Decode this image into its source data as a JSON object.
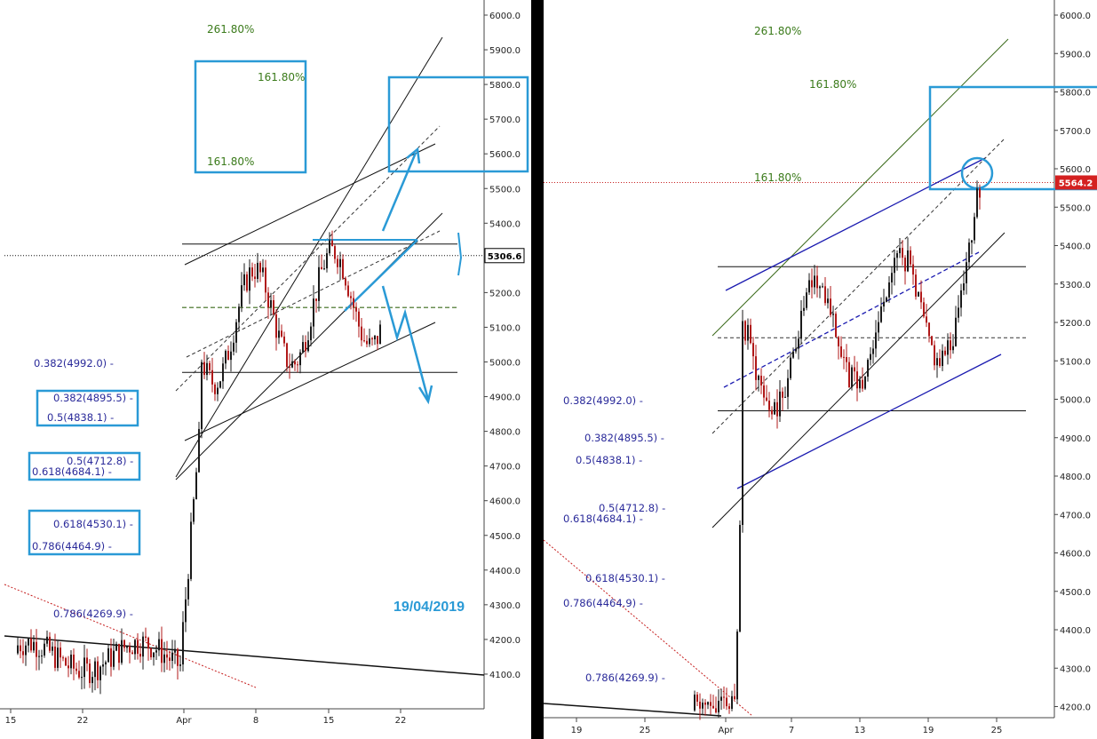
{
  "date_stamp": "19/04/2019",
  "chart_data": [
    {
      "type": "candlestick",
      "panel": "left",
      "price_marker": {
        "value": 5306.6,
        "label": "5306.6",
        "bg": "#ffffff",
        "fg": "#000000"
      },
      "y_ticks": [
        "6000.0",
        "5900.0",
        "5800.0",
        "5700.0",
        "5600.0",
        "5500.0",
        "5400.0",
        "5300.0",
        "5200.0",
        "5100.0",
        "5000.0",
        "4900.0",
        "4800.0",
        "4700.0",
        "4600.0",
        "4500.0",
        "4400.0",
        "4300.0",
        "4200.0",
        "4100.0"
      ],
      "x_ticks": [
        "15",
        "22",
        "Apr",
        "8",
        "15",
        "22"
      ],
      "fib_labels": [
        "0.382(4992.0)",
        "0.382(4895.5)",
        "0.5(4838.1)",
        "0.5(4712.8)",
        "0.618(4684.1)",
        "0.618(4530.1)",
        "0.786(4464.9)",
        "0.786(4269.9)"
      ],
      "extension_labels": [
        "261.80%",
        "161.80%",
        "161.80%"
      ],
      "horizontal_levels": [
        5340,
        4970,
        5157
      ],
      "colors": {
        "fib": "#2a2a9a",
        "extension": "#3a7a1a",
        "annotation": "#2a9ad6",
        "up": "#1a1a1a",
        "down": "#b01818"
      }
    },
    {
      "type": "candlestick",
      "panel": "right",
      "price_marker": {
        "value": 5564.2,
        "label": "5564.2",
        "bg": "#d42020",
        "fg": "#ffffff"
      },
      "y_ticks": [
        "6000.0",
        "5900.0",
        "5800.0",
        "5700.0",
        "5600.0",
        "5500.0",
        "5400.0",
        "5300.0",
        "5200.0",
        "5100.0",
        "5000.0",
        "4900.0",
        "4800.0",
        "4700.0",
        "4600.0",
        "4500.0",
        "4400.0",
        "4300.0",
        "4200.0"
      ],
      "x_ticks": [
        "19",
        "25",
        "Apr",
        "7",
        "13",
        "19",
        "25"
      ],
      "fib_labels": [
        "0.382(4992.0)",
        "0.382(4895.5)",
        "0.5(4838.1)",
        "0.5(4712.8)",
        "0.618(4684.1)",
        "0.618(4530.1)",
        "0.786(4464.9)",
        "0.786(4269.9)"
      ],
      "extension_labels": [
        "261.80%",
        "161.80%",
        "161.80%"
      ],
      "horizontal_levels": [
        5345,
        4970,
        5160
      ],
      "colors": {
        "fib": "#2a2a9a",
        "extension": "#3a7a1a",
        "annotation": "#2a9ad6",
        "up": "#1a1a1a",
        "down": "#b01818",
        "channel": "#1a1ab0"
      }
    }
  ]
}
